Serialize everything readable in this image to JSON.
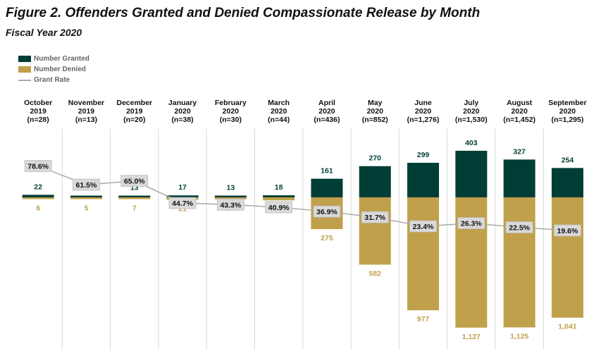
{
  "title": "Figure 2.  Offenders Granted and Denied Compassionate Release by Month",
  "subtitle": "Fiscal Year 2020",
  "colors": {
    "granted": "#003d35",
    "denied": "#c0a04a",
    "rate_line": "#aaaaaa",
    "rate_box": "#d9d9d9",
    "divider": "#d8d8d8"
  },
  "legend": {
    "granted": "Number Granted",
    "denied": "Number Denied",
    "rate": "Grant Rate"
  },
  "chart_data": {
    "type": "bar",
    "categories": [
      {
        "month": "October",
        "year": "2019",
        "n": "(n=28)"
      },
      {
        "month": "November",
        "year": "2019",
        "n": "(n=13)"
      },
      {
        "month": "December",
        "year": "2019",
        "n": "(n=20)"
      },
      {
        "month": "January",
        "year": "2020",
        "n": "(n=38)"
      },
      {
        "month": "February",
        "year": "2020",
        "n": "(n=30)"
      },
      {
        "month": "March",
        "year": "2020",
        "n": "(n=44)"
      },
      {
        "month": "April",
        "year": "2020",
        "n": "(n=436)"
      },
      {
        "month": "May",
        "year": "2020",
        "n": "(n=852)"
      },
      {
        "month": "June",
        "year": "2020",
        "n": "(n=1,276)"
      },
      {
        "month": "July",
        "year": "2020",
        "n": "(n=1,530)"
      },
      {
        "month": "August",
        "year": "2020",
        "n": "(n=1,452)"
      },
      {
        "month": "September",
        "year": "2020",
        "n": "(n=1,295)"
      }
    ],
    "series": [
      {
        "name": "Number Granted",
        "values": [
          22,
          8,
          13,
          17,
          13,
          18,
          161,
          270,
          299,
          403,
          327,
          254
        ],
        "labels": [
          "22",
          "8",
          "13",
          "17",
          "13",
          "18",
          "161",
          "270",
          "299",
          "403",
          "327",
          "254"
        ]
      },
      {
        "name": "Number Denied",
        "values": [
          6,
          5,
          7,
          21,
          17,
          26,
          275,
          582,
          977,
          1127,
          1125,
          1041
        ],
        "labels": [
          "6",
          "5",
          "7",
          "21",
          "17",
          "26",
          "275",
          "582",
          "977",
          "1,127",
          "1,125",
          "1,041"
        ]
      },
      {
        "name": "Grant Rate",
        "values": [
          78.6,
          61.5,
          65.0,
          44.7,
          43.3,
          40.9,
          36.9,
          31.7,
          23.4,
          26.3,
          22.5,
          19.6
        ],
        "labels": [
          "78.6%",
          "61.5%",
          "65.0%",
          "44.7%",
          "43.3%",
          "40.9%",
          "36.9%",
          "31.7%",
          "23.4%",
          "26.3%",
          "22.5%",
          "19.6%"
        ]
      }
    ]
  }
}
